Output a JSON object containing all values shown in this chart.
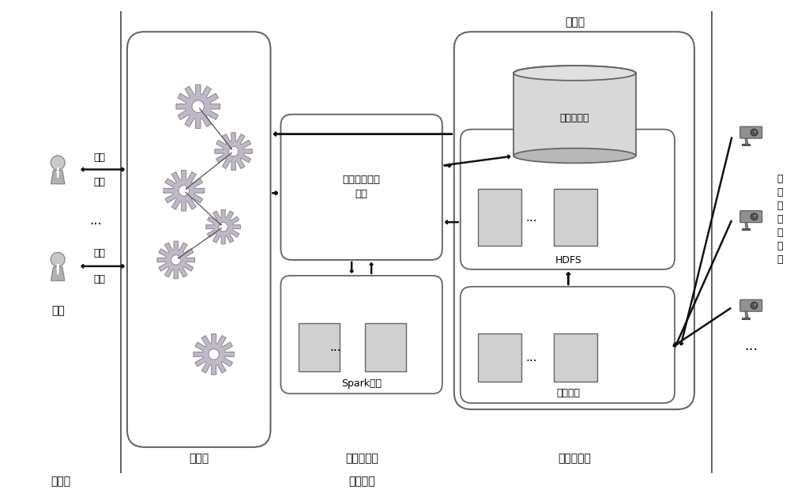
{
  "bg_color": "#ffffff",
  "fig_width": 10.0,
  "fig_height": 6.29,
  "labels": {
    "yonghu": "用户",
    "kehu_duan": "客户端",
    "fuwu_qi_duan": "服务器端",
    "fuwu_ceng": "服务层",
    "shuju_fenxi_ceng": "数据分析层",
    "shuju_caiji_ceng": "数据采集层",
    "cunchu_ceng": "存储层",
    "dongta_pinjia": "动态拼车分析\n模块",
    "spark_jiqun": "Spark集群",
    "hdfs": "HDFS",
    "guanxi_shujuku": "关系数据库",
    "caiji_zhuangzhi": "采集装置",
    "chengshi_jiaotong": "城\n市\n交\n通\n摄\n像\n头",
    "qingqiu1": "请求",
    "xiangying1": "响应",
    "dots_mid": "...",
    "qingqiu2": "请求",
    "xiangying2": "响应",
    "dots_bottom_right": "...",
    "dots_spark": "...",
    "dots_hdfs": "...",
    "dots_caiji": "..."
  },
  "colors": {
    "box_stroke": "#555555",
    "arrow_color": "#111111",
    "db_fill": "#cccccc",
    "db_stroke": "#666666",
    "gear_fill": "#c0b8c8",
    "gear_stroke": "#888888",
    "rounded_box_stroke": "#666666",
    "line_color": "#444444",
    "inner_box_fill_gray": "#d0d0d0",
    "inner_box_fill_green": "#c8d8c8",
    "inner_box_stroke": "#666666"
  },
  "gear_positions": [
    [
      2.5,
      4.95,
      0.28,
      0.16,
      12
    ],
    [
      2.95,
      4.38,
      0.24,
      0.13,
      12
    ],
    [
      2.32,
      3.88,
      0.26,
      0.14,
      12
    ],
    [
      2.82,
      3.42,
      0.22,
      0.12,
      12
    ],
    [
      2.22,
      3.0,
      0.24,
      0.13,
      12
    ],
    [
      2.7,
      1.8,
      0.26,
      0.14,
      12
    ]
  ],
  "gear_arrows": [
    [
      2.5,
      4.95,
      2.95,
      4.38
    ],
    [
      2.95,
      4.38,
      2.32,
      3.88
    ],
    [
      2.32,
      3.88,
      2.82,
      3.42
    ],
    [
      2.82,
      3.42,
      2.22,
      3.0
    ]
  ]
}
